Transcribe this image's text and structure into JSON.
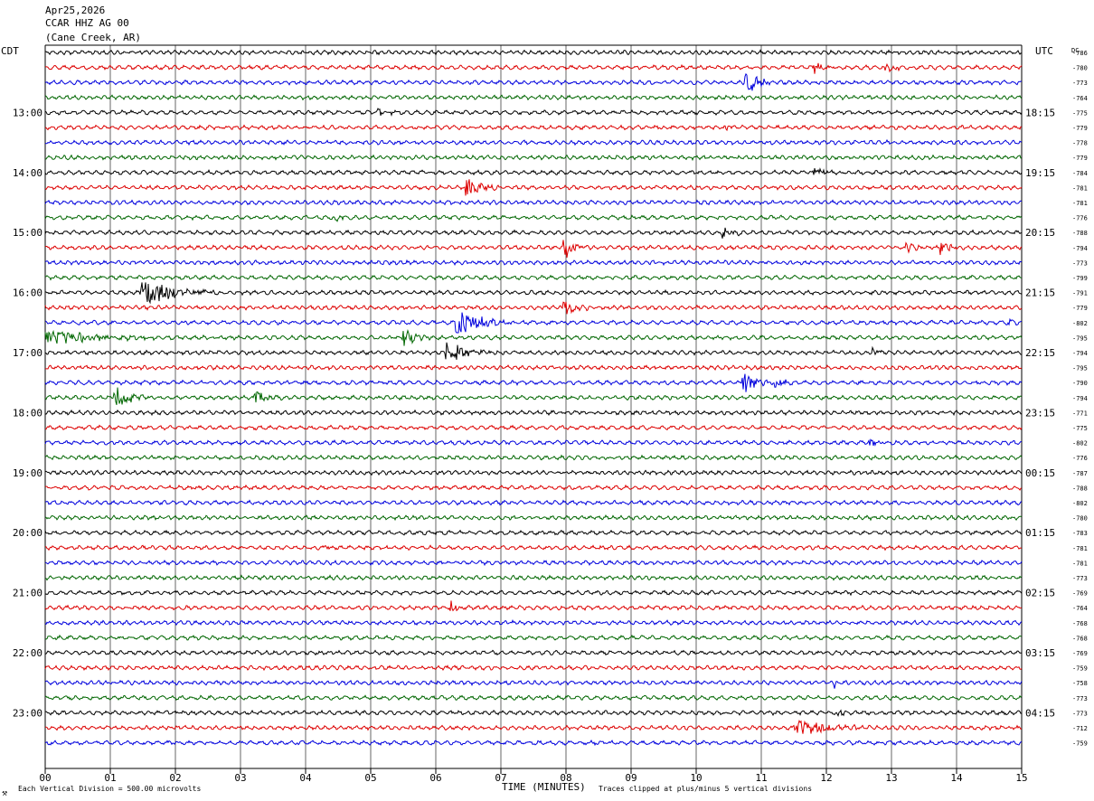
{
  "header": {
    "date": "Apr25,2026",
    "station": "CCAR HHZ AG 00",
    "location": "(Cane Creek, AR)"
  },
  "left_zone_label": "CDT",
  "right_zone_label": "UTC",
  "dc_label": "DC",
  "footer": {
    "xlabel": "TIME (MINUTES)",
    "scale_note": "Each Vertical Division =  500.00 microvolts",
    "clip_note": "Traces clipped at plus/minus 5 vertical divisions",
    "corner_mark": "⚒"
  },
  "colors": {
    "trace_cycle": [
      "#000000",
      "#dd0000",
      "#0000dd",
      "#006600"
    ],
    "grid": "#000000",
    "background": "#ffffff"
  },
  "chart_data": {
    "type": "line",
    "title": "CCAR HHZ AG 00",
    "xlabel": "TIME (MINUTES)",
    "x_ticks": [
      "00",
      "01",
      "02",
      "03",
      "04",
      "05",
      "06",
      "07",
      "08",
      "09",
      "10",
      "11",
      "12",
      "13",
      "14",
      "15"
    ],
    "xlim": [
      0,
      15
    ],
    "grid": "vertical",
    "row_minutes": 15,
    "row_count": 47,
    "left_hour_labels": [
      {
        "row": 4,
        "label": "13:00"
      },
      {
        "row": 8,
        "label": "14:00"
      },
      {
        "row": 12,
        "label": "15:00"
      },
      {
        "row": 16,
        "label": "16:00"
      },
      {
        "row": 20,
        "label": "17:00"
      },
      {
        "row": 24,
        "label": "18:00"
      },
      {
        "row": 28,
        "label": "19:00"
      },
      {
        "row": 32,
        "label": "20:00"
      },
      {
        "row": 36,
        "label": "21:00"
      },
      {
        "row": 40,
        "label": "22:00"
      },
      {
        "row": 44,
        "label": "23:00"
      }
    ],
    "right_hour_labels": [
      {
        "row": 4,
        "label": "18:15"
      },
      {
        "row": 8,
        "label": "19:15"
      },
      {
        "row": 12,
        "label": "20:15"
      },
      {
        "row": 16,
        "label": "21:15"
      },
      {
        "row": 20,
        "label": "22:15"
      },
      {
        "row": 24,
        "label": "23:15"
      },
      {
        "row": 28,
        "label": "00:15"
      },
      {
        "row": 32,
        "label": "01:15"
      },
      {
        "row": 36,
        "label": "02:15"
      },
      {
        "row": 40,
        "label": "03:15"
      },
      {
        "row": 44,
        "label": "04:15"
      }
    ],
    "dc_offsets": [
      "-786",
      "-780",
      "-773",
      "-764",
      "-775",
      "-779",
      "-778",
      "-779",
      "-784",
      "-781",
      "-781",
      "-776",
      "-788",
      "-794",
      "-773",
      "-799",
      "-791",
      "-779",
      "-802",
      "-795",
      "-794",
      "-795",
      "-790",
      "-794",
      "-771",
      "-775",
      "-802",
      "-776",
      "-787",
      "-788",
      "-802",
      "-780",
      "-783",
      "-781",
      "-781",
      "-773",
      "-769",
      "-764",
      "-768",
      "-768",
      "-769",
      "-759",
      "-758",
      "-773",
      "-773",
      "-712",
      "-759"
    ],
    "events": [
      {
        "row": 1,
        "minute": 11.8,
        "amplitude": 2.0,
        "duration": 0.5
      },
      {
        "row": 1,
        "minute": 12.9,
        "amplitude": 1.8,
        "duration": 0.5
      },
      {
        "row": 2,
        "minute": 10.75,
        "amplitude": 5.0,
        "duration": 0.4
      },
      {
        "row": 4,
        "minute": 5.1,
        "amplitude": 2.0,
        "duration": 0.4
      },
      {
        "row": 5,
        "minute": 10.45,
        "amplitude": 1.5,
        "duration": 0.3
      },
      {
        "row": 8,
        "minute": 11.8,
        "amplitude": 2.0,
        "duration": 0.5
      },
      {
        "row": 9,
        "minute": 6.45,
        "amplitude": 5.0,
        "duration": 0.5
      },
      {
        "row": 11,
        "minute": 4.45,
        "amplitude": 2.5,
        "duration": 0.3
      },
      {
        "row": 12,
        "minute": 10.4,
        "amplitude": 1.5,
        "duration": 0.5
      },
      {
        "row": 13,
        "minute": 7.95,
        "amplitude": 5.0,
        "duration": 0.4
      },
      {
        "row": 13,
        "minute": 13.2,
        "amplitude": 2.0,
        "duration": 0.4
      },
      {
        "row": 13,
        "minute": 13.75,
        "amplitude": 2.5,
        "duration": 0.4
      },
      {
        "row": 16,
        "minute": 1.45,
        "amplitude": 5.0,
        "duration": 1.2
      },
      {
        "row": 17,
        "minute": 7.95,
        "amplitude": 3.0,
        "duration": 0.5
      },
      {
        "row": 18,
        "minute": 6.3,
        "amplitude": 5.0,
        "duration": 0.9
      },
      {
        "row": 18,
        "minute": 14.8,
        "amplitude": 1.5,
        "duration": 0.3
      },
      {
        "row": 19,
        "minute": 0.0,
        "amplitude": 2.5,
        "duration": 2.2
      },
      {
        "row": 19,
        "minute": 5.5,
        "amplitude": 3.0,
        "duration": 0.5
      },
      {
        "row": 20,
        "minute": 6.15,
        "amplitude": 5.0,
        "duration": 0.7
      },
      {
        "row": 20,
        "minute": 12.7,
        "amplitude": 1.8,
        "duration": 0.3
      },
      {
        "row": 22,
        "minute": 10.7,
        "amplitude": 5.0,
        "duration": 0.4
      },
      {
        "row": 22,
        "minute": 11.2,
        "amplitude": 2.0,
        "duration": 0.4
      },
      {
        "row": 23,
        "minute": 1.05,
        "amplitude": 4.0,
        "duration": 0.6
      },
      {
        "row": 23,
        "minute": 3.2,
        "amplitude": 3.0,
        "duration": 0.5
      },
      {
        "row": 26,
        "minute": 12.65,
        "amplitude": 2.0,
        "duration": 0.3
      },
      {
        "row": 33,
        "minute": 4.3,
        "amplitude": 1.5,
        "duration": 0.2
      },
      {
        "row": 37,
        "minute": 6.2,
        "amplitude": 4.0,
        "duration": 0.2
      },
      {
        "row": 42,
        "minute": 12.1,
        "amplitude": 1.5,
        "duration": 0.3
      },
      {
        "row": 44,
        "minute": 12.15,
        "amplitude": 1.5,
        "duration": 0.3
      },
      {
        "row": 45,
        "minute": 11.5,
        "amplitude": 3.0,
        "duration": 1.2
      }
    ]
  }
}
